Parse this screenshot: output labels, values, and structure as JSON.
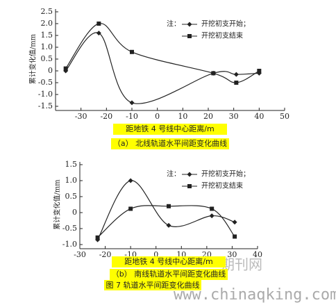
{
  "chart_data": [
    {
      "type": "line",
      "ylabel": "累计变化值/mm",
      "xlabel": "距地铁 4 号线中心距离/m",
      "caption": "（a） 北线轨道水平间距变化曲线",
      "legend_note": "注：",
      "x": [
        -36,
        -23,
        -10,
        22,
        31,
        40
      ],
      "series": [
        {
          "name": "开挖初支开始；",
          "color": "#222222",
          "marker": "diamond",
          "values": [
            0,
            1.6,
            -1.35,
            -0.1,
            -0.15,
            -0.1
          ]
        },
        {
          "name": "开挖初支结束",
          "color": "#222222",
          "marker": "square",
          "values": [
            0.1,
            2.0,
            0.8,
            -0.1,
            -0.5,
            0.0
          ]
        }
      ],
      "xlim": [
        -40,
        50
      ],
      "xticks": [
        -30,
        -20,
        -10,
        0,
        10,
        20,
        30,
        40,
        50
      ],
      "ylim": [
        -1.5,
        2.5
      ],
      "yticks": [
        -1.5,
        {
          "value": -1,
          "label": "-1.0"
        },
        -0.5,
        0,
        0.5,
        {
          "value": 1,
          "label": "1.0"
        },
        1.5,
        {
          "value": 2,
          "label": "2.0"
        },
        2.5
      ]
    },
    {
      "type": "line",
      "ylabel": "累计变化值/mm",
      "xlabel": "距地铁 4 号线中心距离/m",
      "caption": "（b） 南线轨道水平间距变化曲线",
      "legend_note": "注：",
      "x": [
        -23,
        -10,
        5,
        22,
        31
      ],
      "series": [
        {
          "name": "开挖初支开始；",
          "color": "#222222",
          "marker": "diamond",
          "values": [
            -0.85,
            1.0,
            -0.4,
            -0.1,
            -0.3
          ]
        },
        {
          "name": "开挖初支结束",
          "color": "#222222",
          "marker": "square",
          "values": [
            -0.78,
            0.12,
            0.2,
            0.12,
            -0.75
          ]
        }
      ],
      "xlim": [
        -30,
        40
      ],
      "xticks": [
        -30,
        -20,
        -10,
        0,
        10,
        20,
        30,
        40
      ],
      "ylim": [
        -1,
        1.5
      ],
      "yticks": [
        {
          "value": -1,
          "label": "-1.0"
        },
        -0.5,
        0,
        0.5,
        {
          "value": 1,
          "label": "1.0"
        },
        1.5
      ]
    }
  ],
  "figure_caption": "图 7 轨道水平间距变化曲线",
  "watermark": {
    "logo": "期刊网",
    "url": "www.chinaqking.com"
  }
}
